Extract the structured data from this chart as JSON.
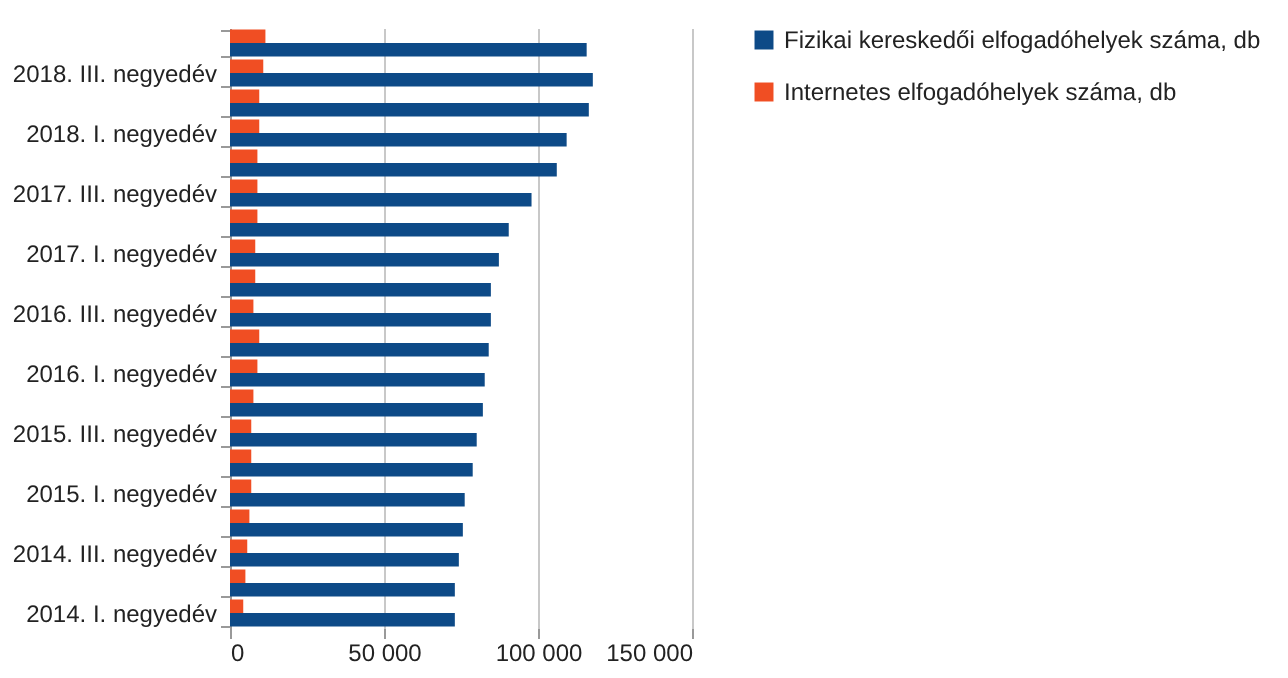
{
  "chart_data": {
    "type": "bar",
    "orientation": "horizontal",
    "categories": [
      null,
      "2018. III. negyedév",
      null,
      "2018. I. negyedév",
      null,
      "2017. III. negyedév",
      null,
      "2017. I. negyedév",
      null,
      "2016. III. negyedév",
      null,
      "2016. I. negyedév",
      null,
      "2015. III. negyedév",
      null,
      "2015. I. negyedév",
      null,
      "2014. III. negyedév",
      null,
      "2014. I. negyedév"
    ],
    "series": [
      {
        "name": "Fizikai kereskedői elfogadóhelyek száma, db",
        "color": "#0d4a87",
        "values": [
          115800,
          117800,
          116500,
          109300,
          106100,
          97900,
          90500,
          87300,
          84700,
          84700,
          84000,
          82700,
          82100,
          80100,
          78800,
          76200,
          75600,
          74300,
          73000,
          73000
        ]
      },
      {
        "name": "Internetes elfogadóhelyek száma, db",
        "color": "#f04e23",
        "values": [
          11500,
          10800,
          9500,
          9500,
          8900,
          8900,
          8900,
          8200,
          8200,
          7600,
          9500,
          8900,
          7600,
          6900,
          6900,
          6900,
          6300,
          5600,
          5000,
          4300
        ]
      }
    ],
    "xlim": [
      0,
      150000
    ],
    "xticks": [
      {
        "value": 0,
        "label": "0"
      },
      {
        "value": 50000,
        "label": "50 000"
      },
      {
        "value": 100000,
        "label": "100 000"
      },
      {
        "value": 150000,
        "label": "150 000"
      }
    ],
    "grid": "x",
    "legend": "right"
  }
}
